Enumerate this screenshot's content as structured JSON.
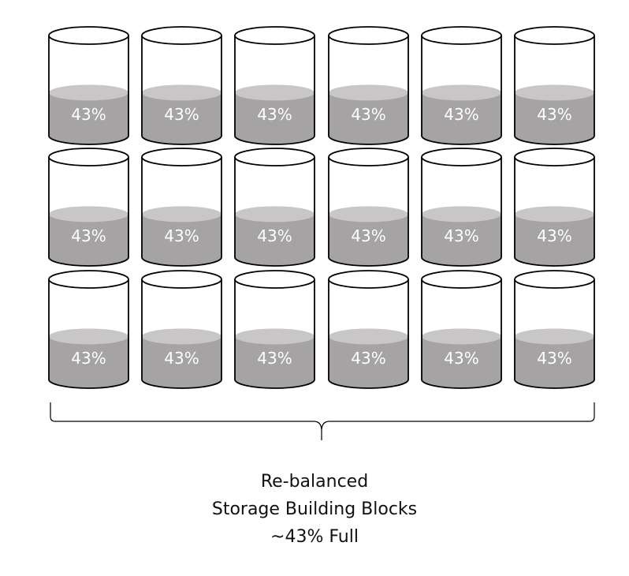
{
  "diagram": {
    "cylinder_rows": 3,
    "cylinder_columns": 6,
    "fill_fraction": 0.43,
    "cylinder_label": "43%",
    "colors": {
      "outline": "#000000",
      "fill_body": "#a5a3a3",
      "fill_surface": "#c8c6c6",
      "label": "#ffffff"
    },
    "caption": {
      "line1": "Re-balanced",
      "line2": "Storage Building Blocks",
      "line3": "~43% Full"
    }
  }
}
